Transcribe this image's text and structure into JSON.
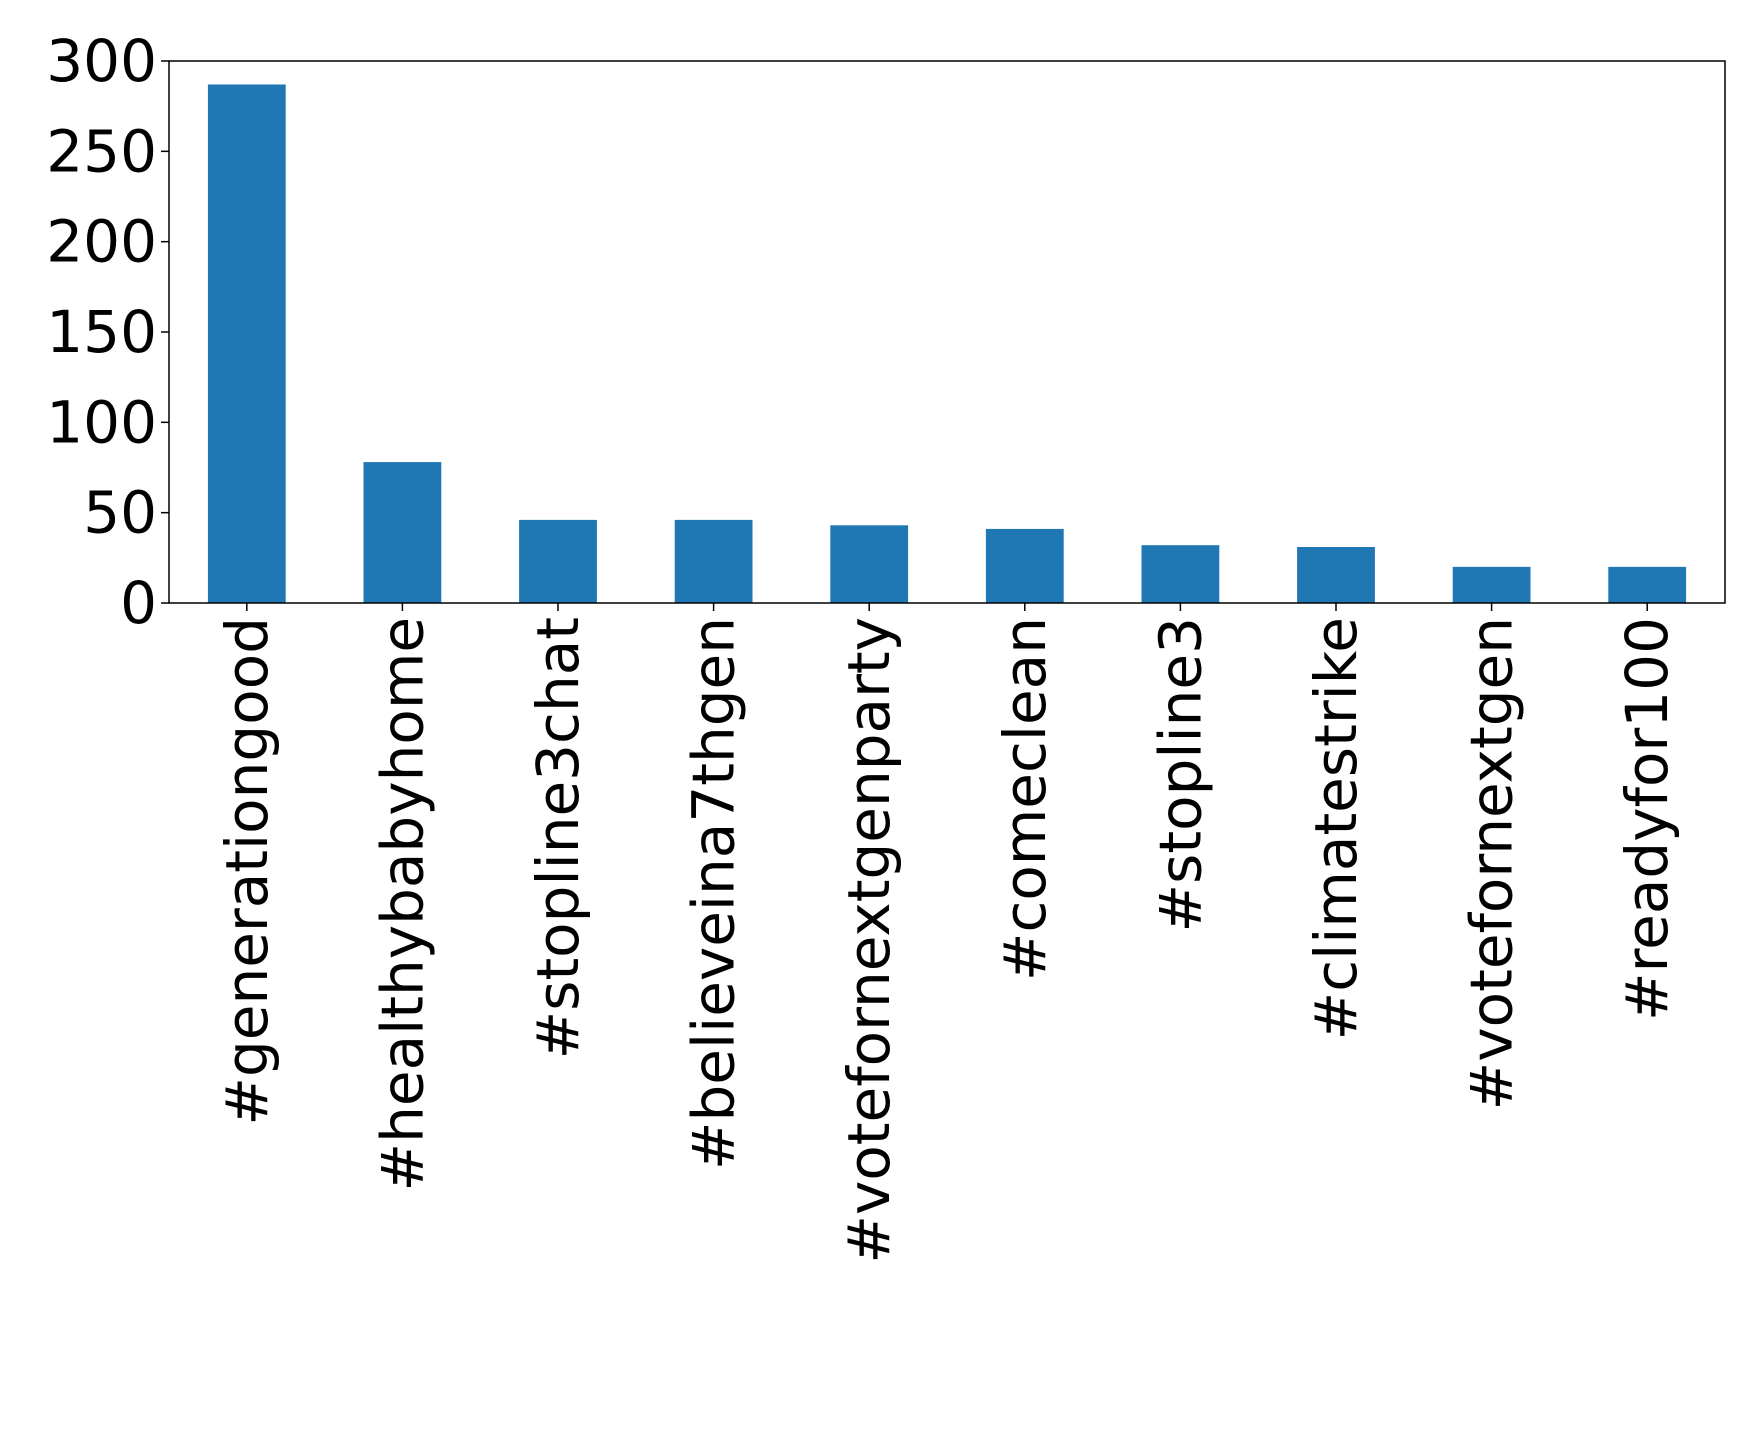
{
  "chart_data": {
    "type": "bar",
    "categories": [
      "#generationgood",
      "#healthybabyhome",
      "#stopline3chat",
      "#believeina7thgen",
      "#votefornextgenparty",
      "#comeclean",
      "#stopline3",
      "#climatestrike",
      "#votefornextgen",
      "#readyfor100"
    ],
    "values": [
      287,
      78,
      46,
      46,
      43,
      41,
      32,
      31,
      20,
      20
    ],
    "title": "",
    "xlabel": "",
    "ylabel": "",
    "ylim": [
      0,
      300
    ],
    "yticks": [
      0,
      50,
      100,
      150,
      200,
      250,
      300
    ],
    "bar_color": "#1f77b4",
    "grid": false,
    "legend": "none"
  }
}
